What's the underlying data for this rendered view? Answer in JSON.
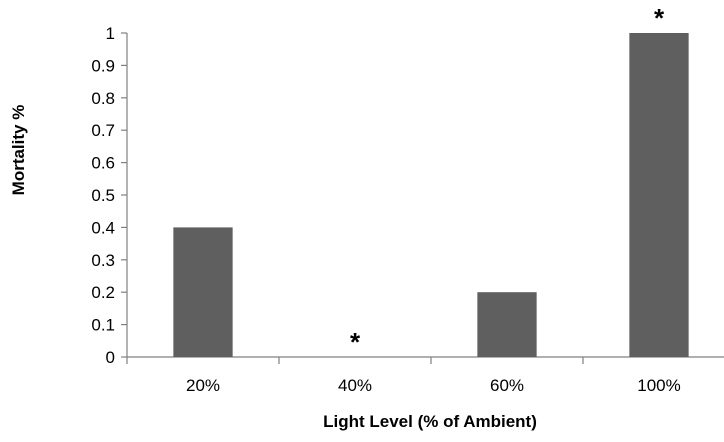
{
  "chart_data": {
    "type": "bar",
    "title": "",
    "xlabel": "Light Level (% of Ambient)",
    "ylabel": "Mortality %",
    "categories": [
      "20%",
      "40%",
      "60%",
      "100%"
    ],
    "values": [
      0.4,
      0,
      0.2,
      1
    ],
    "ylim": [
      0,
      1
    ],
    "yticks": [
      "0",
      "0.1",
      "0.2",
      "0.3",
      "0.4",
      "0.5",
      "0.6",
      "0.7",
      "0.8",
      "0.9",
      "1"
    ],
    "significance_marks": [
      {
        "category": "40%",
        "text": "*"
      },
      {
        "category": "100%",
        "text": "*"
      }
    ],
    "bar_color": "#5f5f5f",
    "grid": false,
    "legend": "none"
  }
}
